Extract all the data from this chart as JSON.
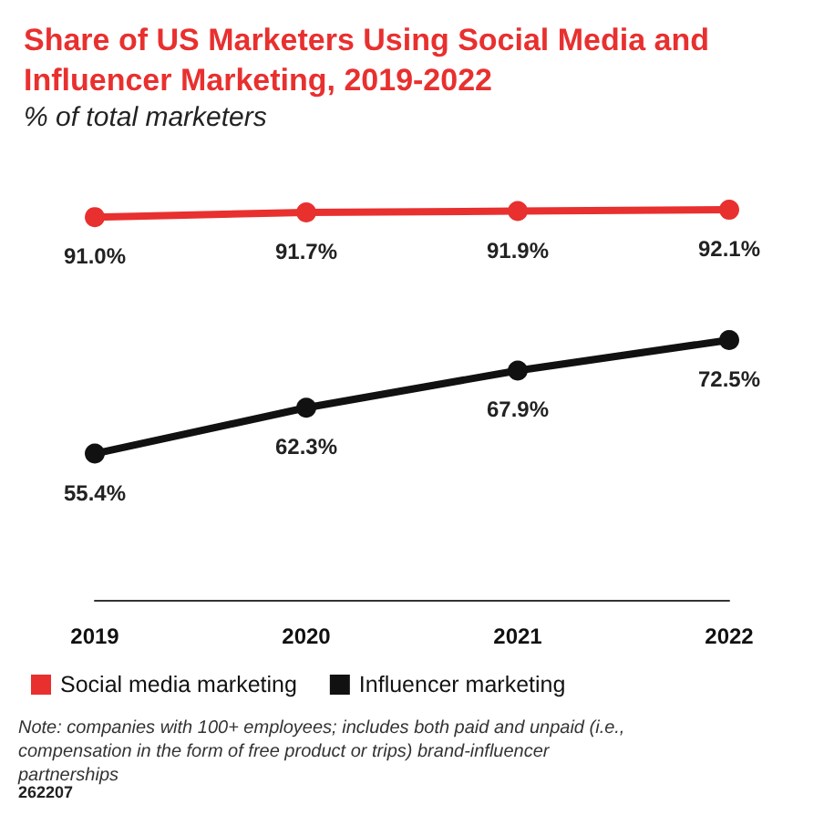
{
  "chart_data": {
    "type": "line",
    "title": "Share of US Marketers Using Social Media and Influencer Marketing, 2019-2022",
    "subtitle": "% of total marketers",
    "categories": [
      "2019",
      "2020",
      "2021",
      "2022"
    ],
    "series": [
      {
        "name": "Social media marketing",
        "color": "#e8302f",
        "values": [
          91.0,
          91.7,
          91.9,
          92.1
        ],
        "value_labels": [
          "91.0%",
          "91.7%",
          "91.9%",
          "92.1%"
        ]
      },
      {
        "name": "Influencer marketing",
        "color": "#111111",
        "values": [
          55.4,
          62.3,
          67.9,
          72.5
        ],
        "value_labels": [
          "55.4%",
          "62.3%",
          "67.9%",
          "72.5%"
        ]
      }
    ],
    "tick_labels": "x",
    "grid": false,
    "legend": "bottom left",
    "marker": "circle",
    "line_style": "solid",
    "annotations": [
      "Note: companies with 100+ employees; includes both paid and unpaid (i.e., compensation in the form of free product or trips) brand-influencer partnerships",
      "262207"
    ]
  }
}
